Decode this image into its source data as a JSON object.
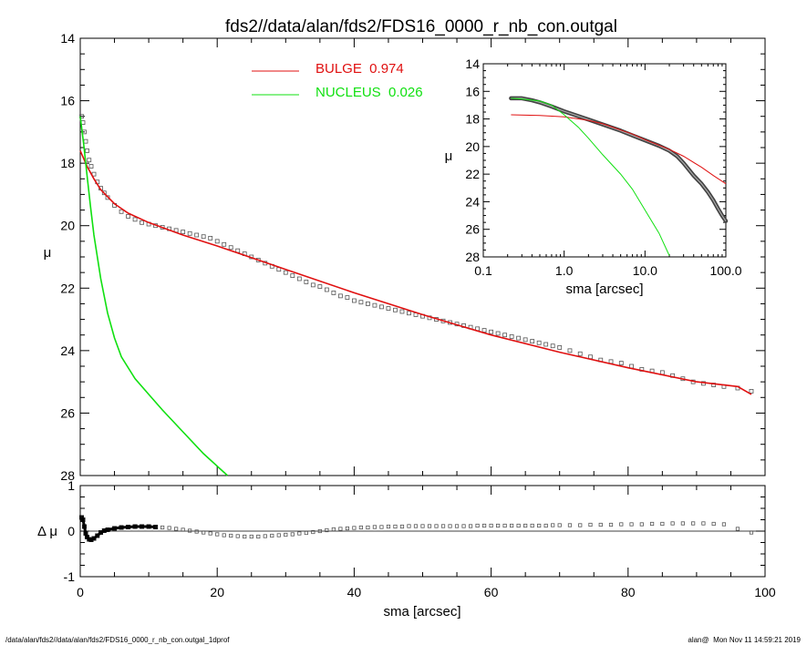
{
  "title": "fds2//data/alan/fds2/FDS16_0000_r_nb_con.outgal",
  "footer": {
    "left": "/data/alan/fds2//data/alan/fds2/FDS16_0000_r_nb_con.outgal_1dprof",
    "right": "alan@  Mon Nov 11 14:59:21 2019"
  },
  "colors": {
    "bulge": "#e01010",
    "nucleus": "#10e010",
    "data": "#555555"
  },
  "chart_data": [
    {
      "type": "scatter",
      "panel": "main",
      "xlabel": "",
      "ylabel": "μ",
      "xlim": [
        0,
        100
      ],
      "ylim": [
        28,
        14
      ],
      "y_inverted": true,
      "yticks": [
        14,
        16,
        18,
        20,
        22,
        24,
        26,
        28
      ],
      "legend": {
        "placement": "top-center",
        "entries": [
          {
            "label": "BULGE  0.974",
            "color": "#e01010"
          },
          {
            "label": "NUCLEUS  0.026",
            "color": "#10e010"
          }
        ]
      },
      "series": [
        {
          "name": "BULGE  0.974",
          "style": "line",
          "x": [
            0,
            1,
            2,
            3,
            5,
            7,
            10,
            15,
            20,
            30,
            40,
            50,
            60,
            70,
            80,
            90,
            96,
            98
          ],
          "y": [
            17.6,
            18.1,
            18.5,
            18.85,
            19.3,
            19.6,
            19.9,
            20.3,
            20.65,
            21.4,
            22.15,
            22.85,
            23.5,
            24.05,
            24.55,
            25.0,
            25.15,
            25.4
          ]
        },
        {
          "name": "NUCLEUS  0.026",
          "style": "line",
          "x": [
            0,
            0.5,
            1,
            1.5,
            2,
            3,
            4,
            5,
            6,
            8,
            10,
            12,
            15,
            18,
            21.5
          ],
          "y": [
            16.5,
            17.4,
            18.4,
            19.4,
            20.3,
            21.7,
            22.8,
            23.6,
            24.2,
            24.9,
            25.4,
            25.9,
            26.6,
            27.3,
            28.0
          ]
        },
        {
          "name": "",
          "style": "markers",
          "x": [
            0.2,
            0.4,
            0.6,
            0.8,
            1.0,
            1.3,
            1.6,
            2.0,
            2.5,
            3.0,
            3.5,
            4.0,
            5.0,
            6.0,
            7.0,
            8.0,
            9.0,
            10.0,
            11.0,
            12.0,
            13.0,
            14.0,
            15.0,
            16.0,
            17.0,
            18.0,
            19.0,
            20.0,
            21.0,
            22.0,
            23.0,
            24.0,
            25.0,
            26.0,
            27.0,
            28.0,
            29.0,
            30.0,
            31.0,
            32.0,
            33.0,
            34.0,
            35.0,
            36.0,
            37.0,
            38.0,
            39.0,
            40.0,
            41.0,
            42.0,
            43.0,
            44.0,
            45.0,
            46.0,
            47.0,
            48.0,
            49.0,
            50.0,
            51.0,
            52.0,
            53.0,
            54.0,
            55.0,
            56.0,
            57.0,
            58.0,
            59.0,
            60.0,
            61.0,
            62.0,
            63.0,
            64.0,
            65.0,
            66.0,
            67.0,
            68.0,
            69.0,
            70.0,
            71.5,
            73.0,
            74.5,
            76.0,
            77.5,
            79.0,
            80.5,
            82.0,
            83.5,
            85.0,
            86.5,
            88.0,
            89.5,
            91.0,
            92.5,
            94.0,
            96.0,
            98.0
          ],
          "y": [
            16.5,
            16.7,
            17.0,
            17.3,
            17.6,
            17.9,
            18.1,
            18.35,
            18.6,
            18.8,
            18.95,
            19.1,
            19.35,
            19.55,
            19.7,
            19.8,
            19.9,
            19.95,
            20.0,
            20.05,
            20.1,
            20.15,
            20.2,
            20.25,
            20.3,
            20.35,
            20.4,
            20.5,
            20.6,
            20.7,
            20.8,
            20.9,
            21.0,
            21.1,
            21.2,
            21.3,
            21.4,
            21.5,
            21.6,
            21.7,
            21.8,
            21.9,
            21.95,
            22.05,
            22.15,
            22.25,
            22.3,
            22.4,
            22.45,
            22.5,
            22.55,
            22.6,
            22.65,
            22.7,
            22.75,
            22.8,
            22.85,
            22.9,
            22.95,
            23.0,
            23.05,
            23.1,
            23.15,
            23.2,
            23.25,
            23.3,
            23.35,
            23.4,
            23.45,
            23.5,
            23.55,
            23.6,
            23.65,
            23.7,
            23.75,
            23.8,
            23.85,
            23.9,
            24.0,
            24.1,
            24.2,
            24.3,
            24.35,
            24.4,
            24.5,
            24.6,
            24.65,
            24.7,
            24.8,
            24.9,
            25.0,
            25.05,
            25.1,
            25.15,
            25.2,
            25.3
          ]
        }
      ]
    },
    {
      "type": "line",
      "panel": "inset",
      "xlabel": "sma [arcsec]",
      "ylabel": "μ",
      "x_scale": "log",
      "xlim": [
        0.1,
        100
      ],
      "ylim": [
        28,
        14
      ],
      "y_inverted": true,
      "xticklabels": [
        "0.1",
        "1.0",
        "10.0",
        "100.0"
      ],
      "yticks": [
        14,
        16,
        18,
        20,
        22,
        24,
        26,
        28
      ],
      "series": [
        {
          "name": "",
          "style": "thick-gray",
          "x": [
            0.22,
            0.3,
            0.4,
            0.5,
            0.7,
            1.0,
            1.5,
            2,
            3,
            5,
            7,
            10,
            15,
            20,
            25,
            30,
            40,
            50,
            60,
            70,
            80,
            90,
            100
          ],
          "y": [
            16.5,
            16.5,
            16.65,
            16.8,
            17.1,
            17.45,
            17.8,
            18.05,
            18.4,
            18.85,
            19.2,
            19.55,
            19.95,
            20.3,
            20.7,
            21.2,
            22.1,
            22.7,
            23.3,
            23.9,
            24.5,
            25.0,
            25.4
          ]
        },
        {
          "name": "",
          "style": "red",
          "x": [
            0.22,
            0.5,
            1.0,
            2,
            3,
            5,
            7,
            10,
            20,
            30,
            50,
            70,
            100
          ],
          "y": [
            17.7,
            17.75,
            17.85,
            18.1,
            18.35,
            18.8,
            19.1,
            19.5,
            20.2,
            20.7,
            21.5,
            22.1,
            22.7
          ]
        },
        {
          "name": "",
          "style": "green",
          "x": [
            0.22,
            0.3,
            0.5,
            0.7,
            1.0,
            1.5,
            2,
            3,
            5,
            7,
            10,
            15,
            20
          ],
          "y": [
            16.5,
            16.55,
            16.7,
            17.0,
            17.7,
            18.6,
            19.4,
            20.6,
            22.0,
            23.1,
            24.6,
            26.3,
            27.9
          ]
        }
      ]
    },
    {
      "type": "scatter",
      "panel": "residual",
      "xlabel": "sma [arcsec]",
      "ylabel": "Δ μ",
      "xlim": [
        0,
        100
      ],
      "ylim": [
        -1,
        1
      ],
      "yticks": [
        -1,
        0,
        1
      ],
      "xticks": [
        0,
        20,
        40,
        60,
        80,
        100
      ],
      "series": [
        {
          "name": "",
          "style": "markers",
          "x": [
            0.2,
            0.4,
            0.6,
            0.8,
            1.0,
            1.3,
            1.6,
            2.0,
            2.5,
            3.0,
            3.5,
            4.0,
            5.0,
            6.0,
            7.0,
            8.0,
            9.0,
            10.0,
            11.0,
            12.0,
            13.0,
            14.0,
            15.0,
            16.0,
            17.0,
            18.0,
            19.0,
            20.0,
            21.0,
            22.0,
            23.0,
            24.0,
            25.0,
            26.0,
            27.0,
            28.0,
            29.0,
            30.0,
            31.0,
            32.0,
            33.0,
            34.0,
            35.0,
            36.0,
            37.0,
            38.0,
            39.0,
            40.0,
            41.0,
            42.0,
            43.0,
            44.0,
            45.0,
            46.0,
            47.0,
            48.0,
            49.0,
            50.0,
            51.0,
            52.0,
            53.0,
            54.0,
            55.0,
            56.0,
            57.0,
            58.0,
            59.0,
            60.0,
            61.0,
            62.0,
            63.0,
            64.0,
            65.0,
            66.0,
            67.0,
            68.0,
            69.0,
            70.0,
            71.5,
            73.0,
            74.5,
            76.0,
            77.5,
            79.0,
            80.5,
            82.0,
            83.5,
            85.0,
            86.5,
            88.0,
            89.5,
            91.0,
            92.5,
            94.0,
            96.0,
            98.0
          ],
          "y": [
            0.3,
            0.25,
            0.1,
            -0.05,
            -0.13,
            -0.18,
            -0.19,
            -0.16,
            -0.1,
            -0.03,
            0.01,
            0.03,
            0.06,
            0.08,
            0.09,
            0.1,
            0.1,
            0.1,
            0.09,
            0.08,
            0.07,
            0.05,
            0.03,
            0.01,
            -0.01,
            -0.03,
            -0.05,
            -0.07,
            -0.09,
            -0.1,
            -0.11,
            -0.12,
            -0.12,
            -0.12,
            -0.11,
            -0.1,
            -0.09,
            -0.08,
            -0.07,
            -0.05,
            -0.04,
            -0.02,
            0.0,
            0.02,
            0.04,
            0.05,
            0.06,
            0.07,
            0.08,
            0.08,
            0.09,
            0.09,
            0.1,
            0.1,
            0.1,
            0.11,
            0.11,
            0.11,
            0.11,
            0.11,
            0.11,
            0.11,
            0.11,
            0.11,
            0.11,
            0.12,
            0.12,
            0.12,
            0.12,
            0.12,
            0.12,
            0.12,
            0.12,
            0.12,
            0.12,
            0.12,
            0.13,
            0.13,
            0.13,
            0.13,
            0.14,
            0.14,
            0.14,
            0.15,
            0.15,
            0.15,
            0.16,
            0.16,
            0.17,
            0.17,
            0.17,
            0.17,
            0.16,
            0.15,
            0.05,
            -0.03
          ]
        }
      ]
    }
  ]
}
